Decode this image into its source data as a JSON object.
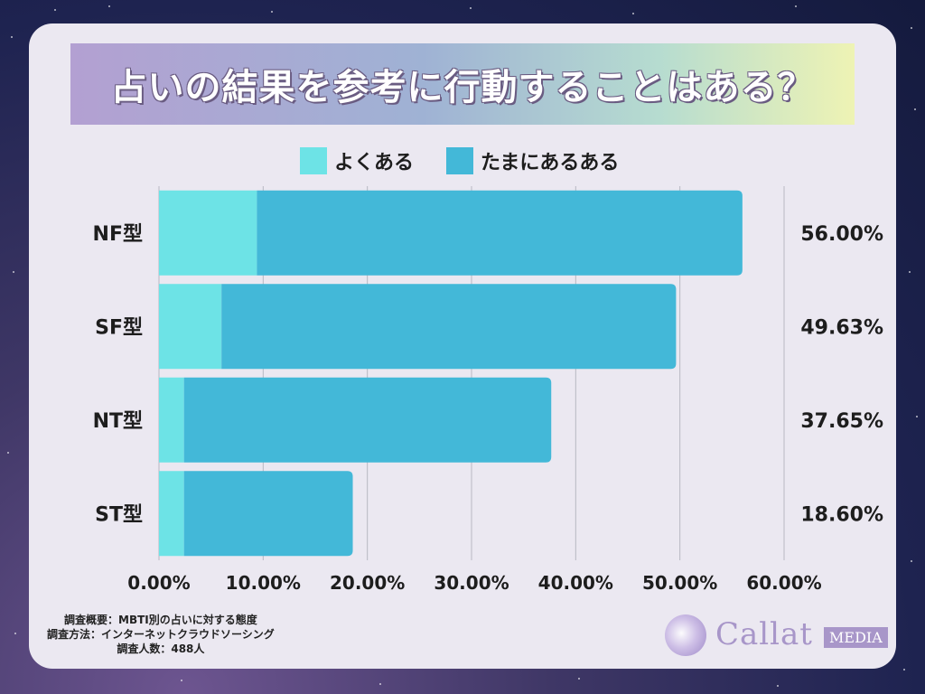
{
  "title": "占いの結果を参考に行動することはある？",
  "notes": {
    "line1": "調査概要：MBTI別の占いに対する態度",
    "line2": "調査方法：インターネットクラウドソーシング",
    "line3": "調査人数：488人"
  },
  "logo": {
    "name": "Callat",
    "badge": "MEDIA"
  },
  "colors": {
    "often": "#6de3e6",
    "sometimes": "#43b8d8",
    "grid": "#b8b8c2"
  },
  "chart_data": {
    "type": "bar",
    "orientation": "horizontal",
    "stacked": true,
    "categories": [
      "NF型",
      "SF型",
      "NT型",
      "ST型"
    ],
    "series": [
      {
        "name": "よくある",
        "values": [
          9.4,
          6.0,
          2.4,
          2.4
        ],
        "color": "#6de3e6"
      },
      {
        "name": "たまにあるある",
        "values": [
          46.6,
          43.63,
          35.25,
          16.2
        ],
        "color": "#43b8d8"
      }
    ],
    "totals_labels": [
      "56.00%",
      "49.63%",
      "37.65%",
      "18.60%"
    ],
    "xticks": [
      "0.00%",
      "10.00%",
      "20.00%",
      "30.00%",
      "40.00%",
      "50.00%",
      "60.00%"
    ],
    "xlim": [
      0,
      60
    ],
    "grid": true,
    "legend_position": "top"
  }
}
